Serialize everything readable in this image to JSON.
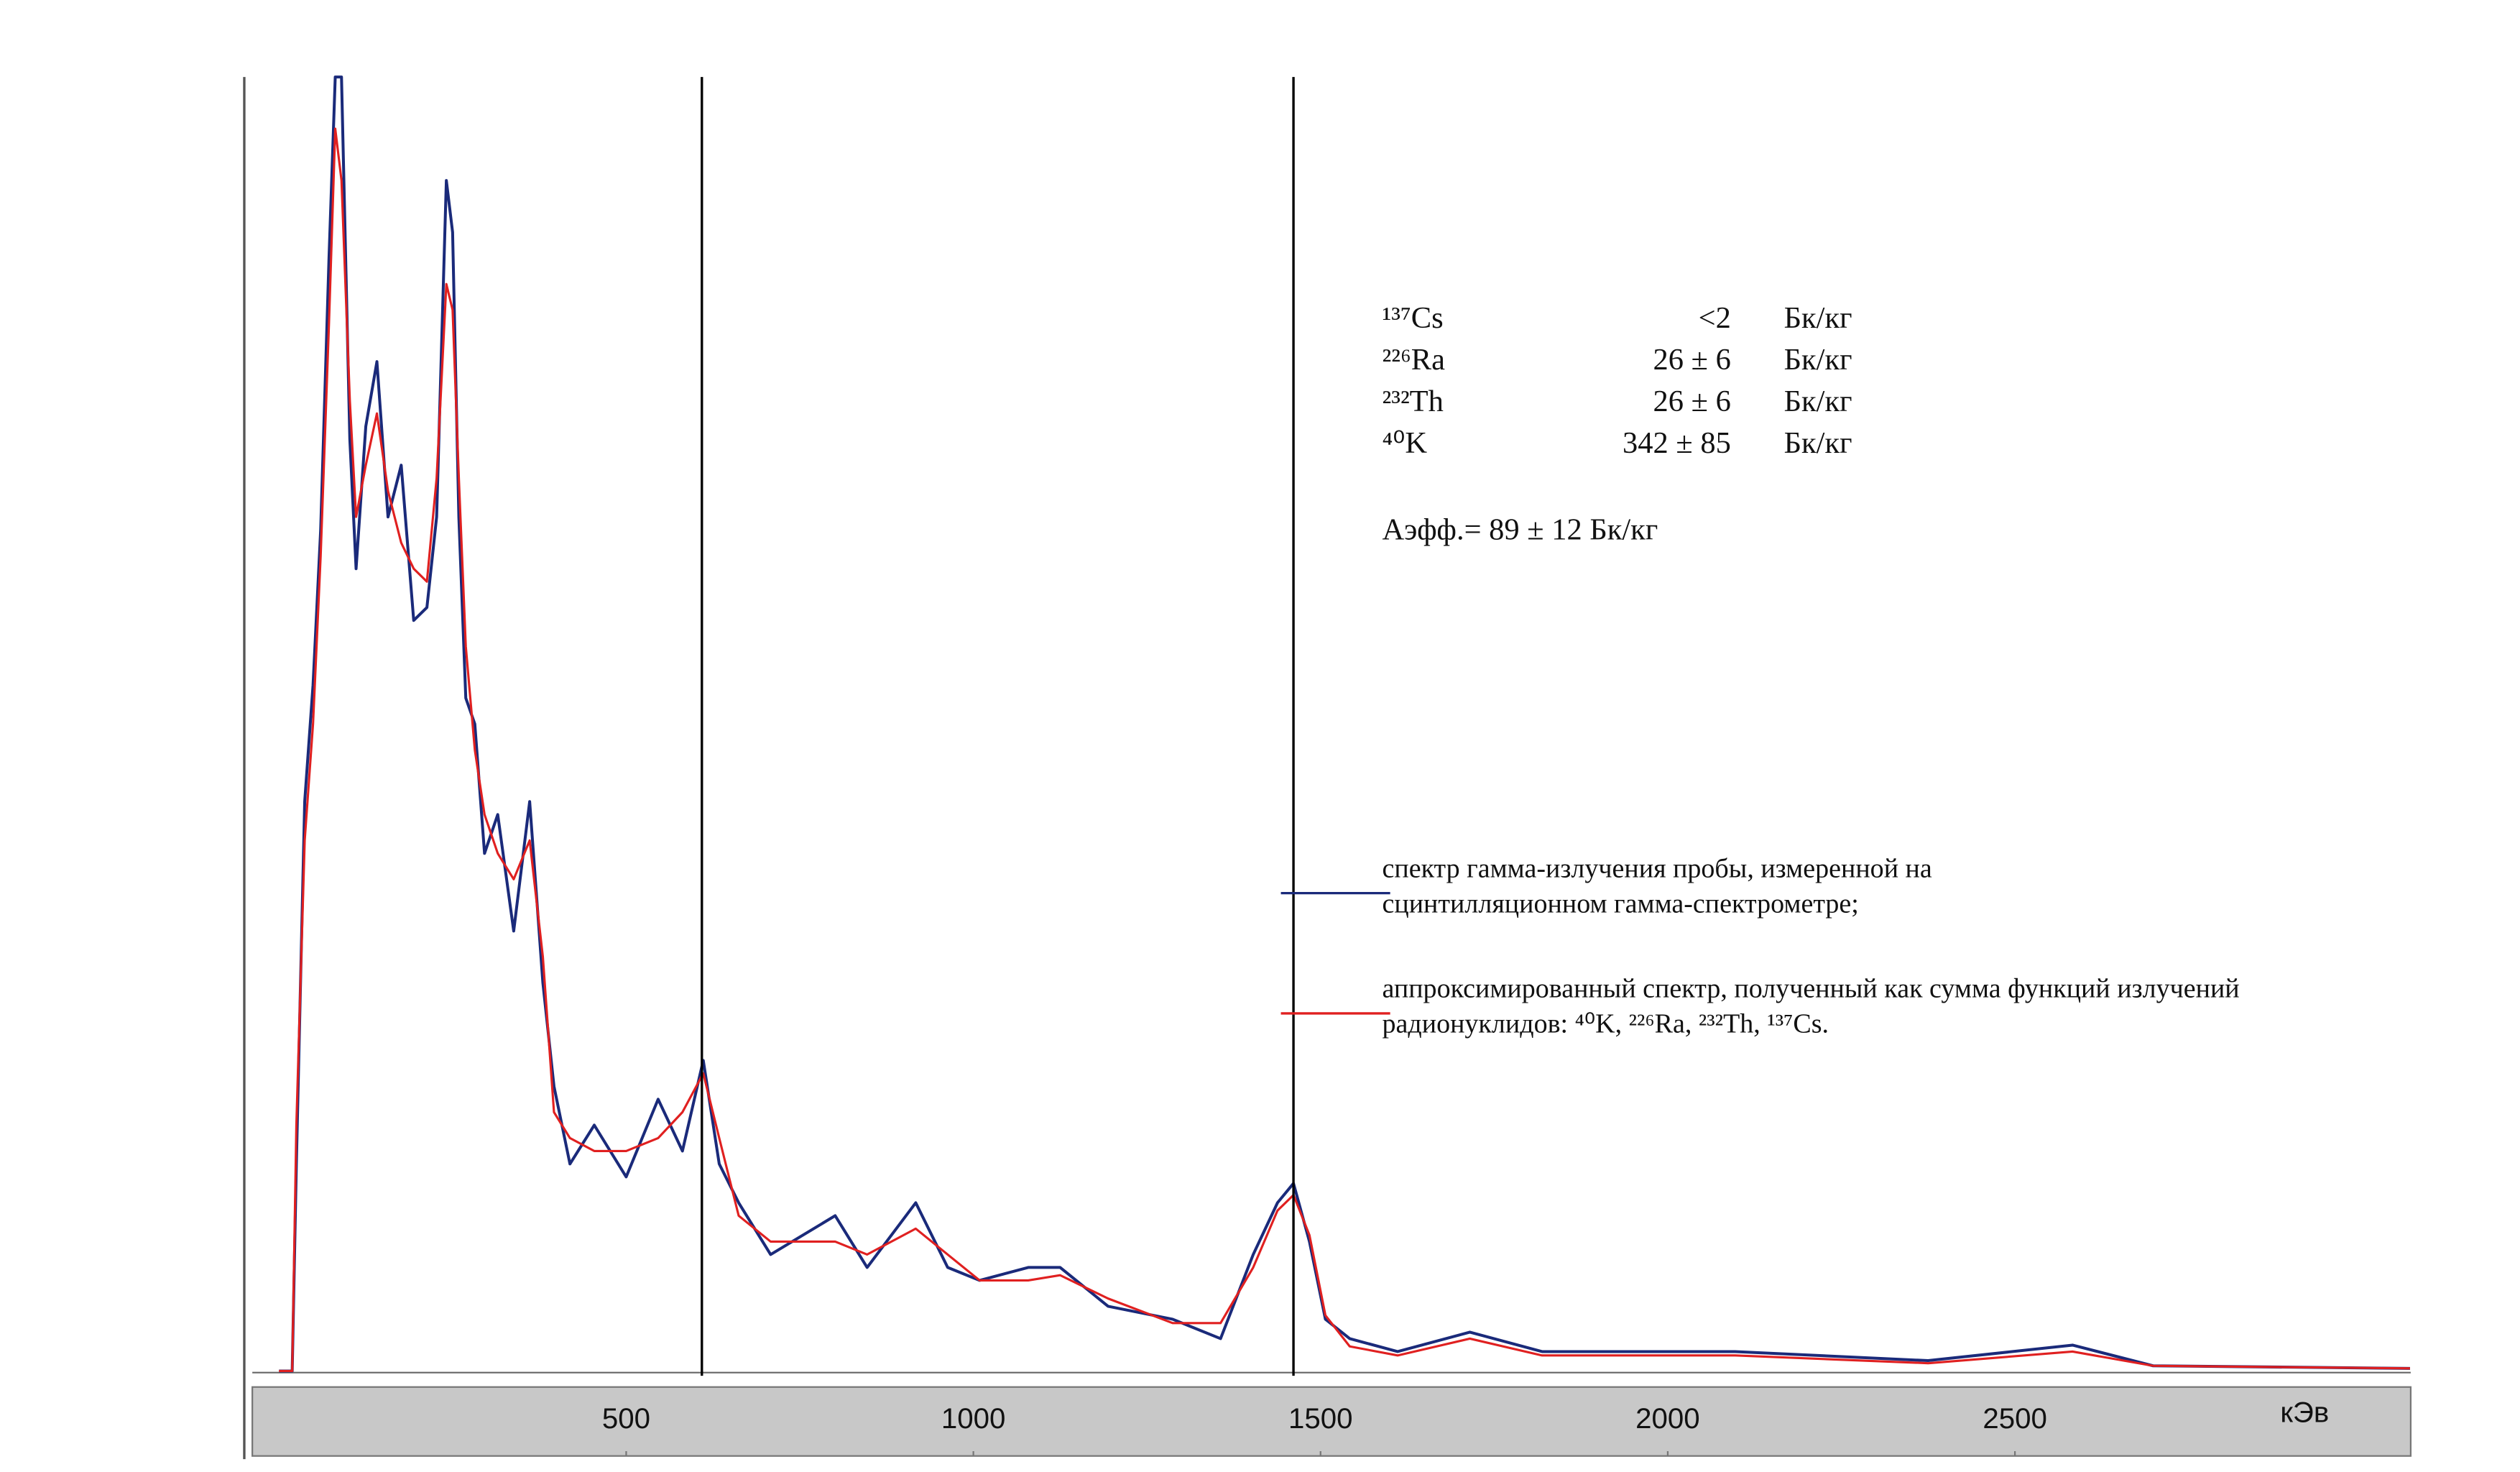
{
  "chart_data": {
    "type": "line",
    "x": [
      0,
      19,
      25,
      37,
      49,
      60,
      72,
      81,
      90,
      102,
      111,
      125,
      141,
      157,
      176,
      194,
      213,
      227,
      241,
      250,
      259,
      269,
      282,
      296,
      315,
      338,
      361,
      380,
      396,
      419,
      454,
      500,
      546,
      581,
      611,
      634,
      662,
      708,
      801,
      847,
      917,
      963,
      1009,
      1079,
      1125,
      1194,
      1287,
      1356,
      1403,
      1438,
      1461,
      1484,
      1507,
      1542,
      1611,
      1715,
      1819,
      2097,
      2375,
      2583,
      2699,
      3069
    ],
    "series": [
      {
        "name": "спектр гамма-излучения пробы, измеренной на сцинтилляционном гамма-спектрометре;",
        "color": "#1a2a7a",
        "values": [
          0,
          0,
          16,
          44,
          53,
          65,
          86,
          100,
          100,
          72,
          62,
          73,
          78,
          66,
          70,
          58,
          59,
          66,
          92,
          88,
          66,
          52,
          50,
          40,
          43,
          34,
          44,
          30,
          22,
          16,
          19,
          15,
          21,
          17,
          24,
          16,
          13,
          9,
          12,
          8,
          13,
          8,
          7,
          8,
          8,
          5,
          4,
          2.5,
          9,
          13,
          14.5,
          10,
          4,
          2.5,
          1.5,
          3,
          1.5,
          1.5,
          0.8,
          2,
          0.4,
          0.2
        ]
      },
      {
        "name": "аппроксимированный спектр, полученный как сумма функций излучений радионуклидов: ⁴⁰K, ²²⁶Ra, ²³²Th, ¹³⁷Cs.",
        "color": "#e02020",
        "values": [
          0,
          0,
          19,
          41,
          50,
          63,
          81,
          96,
          92,
          75,
          66,
          70,
          74,
          68,
          64,
          62,
          61,
          69,
          84,
          82,
          69,
          56,
          48,
          43,
          40,
          38,
          41,
          32,
          20,
          18,
          17,
          17,
          18,
          20,
          23,
          18,
          12,
          10,
          10,
          9,
          11,
          9,
          7,
          7,
          7.4,
          5.6,
          3.7,
          3.7,
          8,
          12.4,
          13.6,
          10.5,
          4.3,
          1.9,
          1.2,
          2.5,
          1.2,
          1.2,
          0.6,
          1.5,
          0.4,
          0.2
        ]
      }
    ],
    "xlim": [
      -50,
      3070
    ],
    "ylim": [
      0,
      100
    ],
    "xticks": [
      500,
      1000,
      1500,
      2000,
      2500
    ],
    "xlabel": "кЭв",
    "markers": [
      609,
      1461
    ],
    "annotations": {
      "rows": [
        {
          "nuclide": "¹³⁷Cs",
          "value": "<2",
          "unit": "Бк/кг"
        },
        {
          "nuclide": "²²⁶Ra",
          "value": "26 ± 6",
          "unit": "Бк/кг"
        },
        {
          "nuclide": "²³²Th",
          "value": "26 ± 6",
          "unit": "Бк/кг"
        },
        {
          "nuclide": "⁴⁰K",
          "value": "342 ± 85",
          "unit": "Бк/кг"
        }
      ],
      "total": "Аэфф.= 89 ± 12 Бк/кг"
    }
  }
}
